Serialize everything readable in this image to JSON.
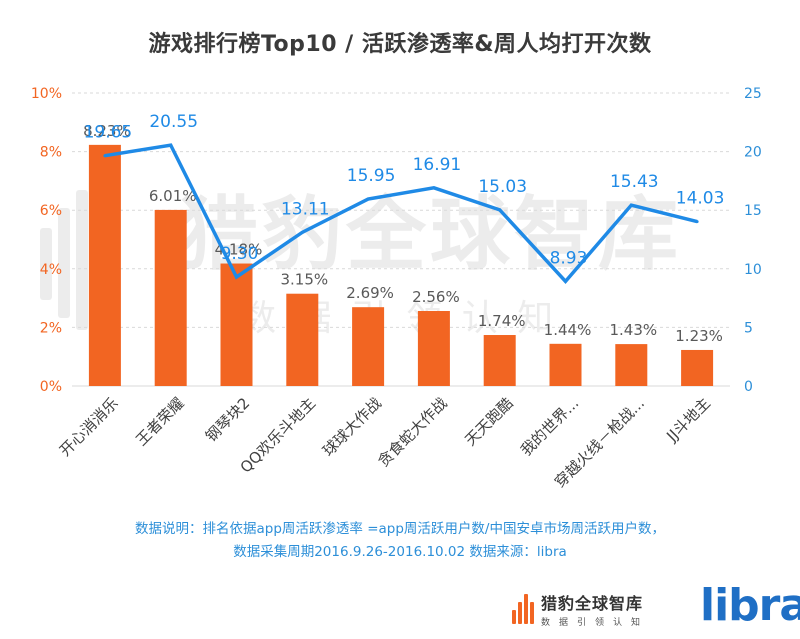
{
  "chart_data": {
    "type": "bar+line",
    "title": "游戏排行榜Top10 / 活跃渗透率&周人均打开次数",
    "categories": [
      "开心消消乐",
      "王者荣耀",
      "钢琴块2",
      "QQ欢乐斗地主",
      "球球大作战",
      "贪食蛇大作战",
      "天天跑酷",
      "我的世界...",
      "穿越火线－枪战...",
      "JJ斗地主"
    ],
    "series": [
      {
        "type": "bar",
        "axis": "left",
        "values": [
          8.23,
          6.01,
          4.18,
          3.15,
          2.69,
          2.56,
          1.74,
          1.44,
          1.43,
          1.23
        ],
        "labels": [
          "8.23%",
          "6.01%",
          "4.18%",
          "3.15%",
          "2.69%",
          "2.56%",
          "1.74%",
          "1.44%",
          "1.43%",
          "1.23%"
        ]
      },
      {
        "type": "line",
        "axis": "right",
        "values": [
          19.65,
          20.55,
          9.3,
          13.11,
          15.95,
          16.91,
          15.03,
          8.93,
          15.43,
          14.03
        ],
        "labels": [
          "19.65",
          "20.55",
          "9.30",
          "13.11",
          "15.95",
          "16.91",
          "15.03",
          "8.93",
          "15.43",
          "14.03"
        ]
      }
    ],
    "y_left": {
      "min": 0,
      "max": 10,
      "ticks": [
        "0%",
        "2%",
        "4%",
        "6%",
        "8%",
        "10%"
      ]
    },
    "y_right": {
      "min": 0,
      "max": 25,
      "ticks": [
        "0",
        "5",
        "10",
        "15",
        "20",
        "25"
      ]
    },
    "grid": true,
    "colors": {
      "bar": "#f26522",
      "line": "#1f8ae6",
      "axis_left": "#f26522",
      "axis_right": "#2d8fd8",
      "label_bar": "#595959",
      "grid": "#d9d9d9"
    }
  },
  "note": {
    "line1": "数据说明：排名依据app周活跃渗透率 =app周活跃用户数/中国安卓市场周活跃用户数，",
    "line2": "数据采集周期2016.9.26-2016.10.02 数据来源：libra"
  },
  "watermark": {
    "cn": "猎豹全球智库",
    "sub": "数 据 引 领 认 知"
  },
  "brand": {
    "cn": "猎豹全球智库",
    "sub": "数据引领认知",
    "libra": "libra"
  }
}
